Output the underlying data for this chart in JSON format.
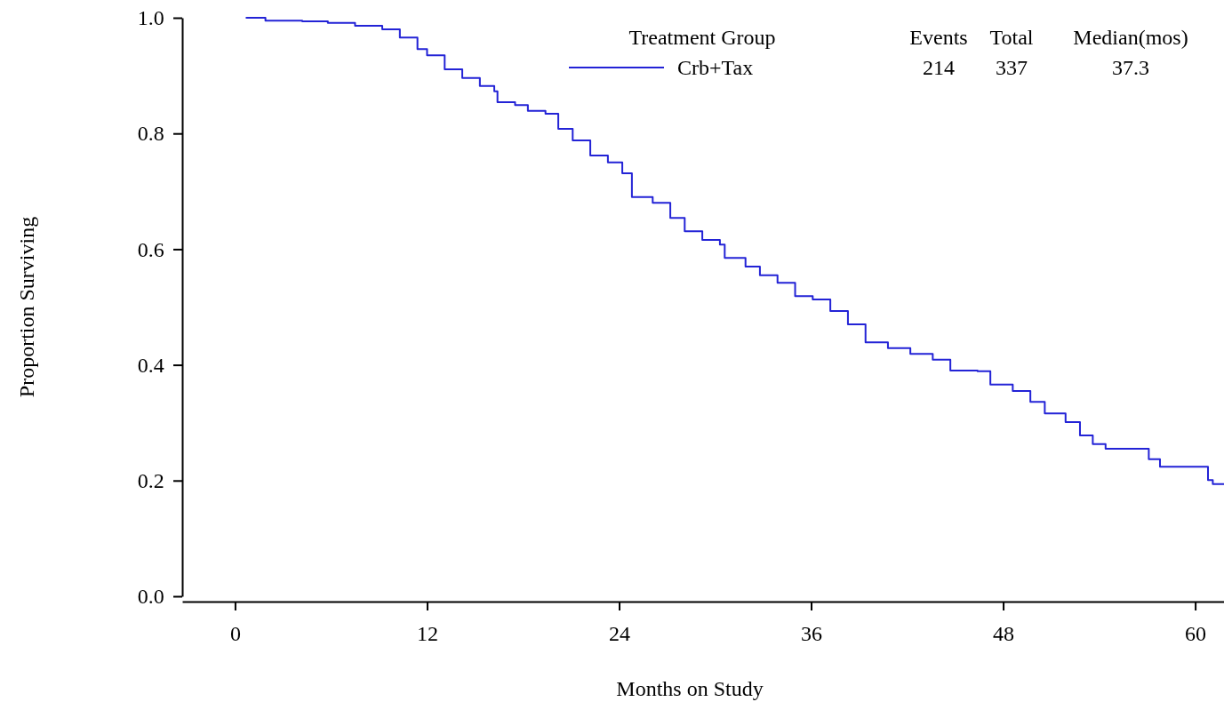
{
  "chart_data": {
    "type": "step",
    "xlabel": "Months on Study",
    "ylabel": "Proportion Surviving",
    "legend_title": "Treatment Group",
    "legend": "top right",
    "xlim": [
      -3.3,
      61.8
    ],
    "xticks": [
      0,
      12,
      24,
      36,
      48,
      60
    ],
    "ylim": [
      0,
      1
    ],
    "yticks": [
      {
        "value": 0,
        "label": "0.0"
      },
      {
        "value": 0.2,
        "label": "0.2"
      },
      {
        "value": 0.4,
        "label": "0.4"
      },
      {
        "value": 0.6,
        "label": "0.6"
      },
      {
        "value": 0.8,
        "label": "0.8"
      },
      {
        "value": 1,
        "label": "1.0"
      }
    ],
    "annotations": [
      "Events",
      "Total",
      "Median(mos)",
      "214",
      "337",
      "37.3"
    ],
    "series": [
      {
        "name": "Crb+Tax",
        "color": "#2323d6",
        "x": [
          0.67,
          1.9,
          4.2,
          5.8,
          7.5,
          9.2,
          10.3,
          11.4,
          12,
          13.1,
          14.2,
          15.3,
          16.2,
          16.4,
          17.5,
          18.3,
          19.4,
          20.2,
          21.1,
          22.2,
          23.3,
          24.2,
          24.8,
          26.1,
          27.2,
          28.1,
          29.2,
          30.3,
          30.6,
          31.9,
          32.8,
          33.9,
          35,
          36.1,
          37.2,
          38.3,
          39.4,
          40.8,
          42.2,
          43.6,
          44.7,
          46.4,
          47.2,
          48.6,
          49.7,
          50.6,
          51.9,
          52.8,
          53.6,
          54.4,
          57.1,
          57.8,
          60.8,
          61.1,
          61.8
        ],
        "values": [
          1.0,
          0.995,
          0.994,
          0.991,
          0.986,
          0.98,
          0.966,
          0.946,
          0.935,
          0.911,
          0.896,
          0.882,
          0.873,
          0.854,
          0.849,
          0.839,
          0.834,
          0.808,
          0.788,
          0.762,
          0.75,
          0.731,
          0.69,
          0.68,
          0.654,
          0.631,
          0.616,
          0.608,
          0.585,
          0.57,
          0.555,
          0.542,
          0.519,
          0.513,
          0.493,
          0.47,
          0.439,
          0.429,
          0.419,
          0.409,
          0.39,
          0.389,
          0.366,
          0.355,
          0.336,
          0.316,
          0.301,
          0.278,
          0.263,
          0.255,
          0.237,
          0.224,
          0.201,
          0.194,
          0.194
        ]
      }
    ]
  }
}
